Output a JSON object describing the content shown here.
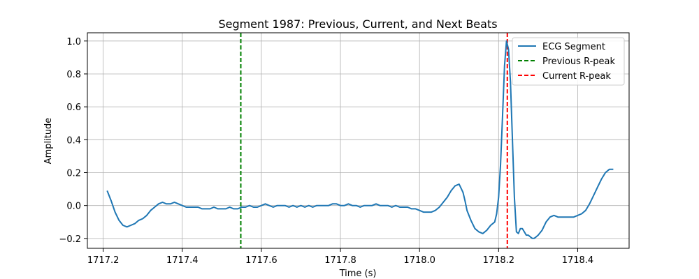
{
  "chart_data": {
    "type": "line",
    "title": "Segment 1987: Previous, Current, and Next Beats",
    "xlabel": "Time (s)",
    "ylabel": "Amplitude",
    "xlim": [
      1717.16,
      1718.53
    ],
    "ylim": [
      -0.26,
      1.05
    ],
    "xticks": [
      1717.2,
      1717.4,
      1717.6,
      1717.8,
      1718.0,
      1718.2,
      1718.4
    ],
    "xtick_labels": [
      "1717.2",
      "1717.4",
      "1717.6",
      "1717.8",
      "1718.0",
      "1718.2",
      "1718.4"
    ],
    "yticks": [
      -0.2,
      0.0,
      0.2,
      0.4,
      0.6,
      0.8,
      1.0
    ],
    "ytick_labels": [
      "−0.2",
      "0.0",
      "0.2",
      "0.4",
      "0.6",
      "0.8",
      "1.0"
    ],
    "grid": true,
    "legend_position": "top-right",
    "series": [
      {
        "name": "ECG Segment",
        "color": "#1f77b4",
        "style": "solid",
        "x": [
          1717.21,
          1717.22,
          1717.23,
          1717.24,
          1717.25,
          1717.26,
          1717.27,
          1717.28,
          1717.29,
          1717.3,
          1717.31,
          1717.32,
          1717.33,
          1717.34,
          1717.35,
          1717.36,
          1717.37,
          1717.38,
          1717.39,
          1717.4,
          1717.41,
          1717.42,
          1717.43,
          1717.44,
          1717.45,
          1717.46,
          1717.47,
          1717.48,
          1717.49,
          1717.5,
          1717.51,
          1717.52,
          1717.53,
          1717.54,
          1717.55,
          1717.56,
          1717.57,
          1717.58,
          1717.59,
          1717.6,
          1717.61,
          1717.62,
          1717.63,
          1717.64,
          1717.65,
          1717.66,
          1717.67,
          1717.68,
          1717.69,
          1717.7,
          1717.71,
          1717.72,
          1717.73,
          1717.74,
          1717.75,
          1717.76,
          1717.77,
          1717.78,
          1717.79,
          1717.8,
          1717.81,
          1717.82,
          1717.83,
          1717.84,
          1717.85,
          1717.86,
          1717.87,
          1717.88,
          1717.89,
          1717.9,
          1717.91,
          1717.92,
          1717.93,
          1717.94,
          1717.95,
          1717.96,
          1717.97,
          1717.98,
          1717.99,
          1718.0,
          1718.01,
          1718.02,
          1718.03,
          1718.04,
          1718.05,
          1718.06,
          1718.07,
          1718.08,
          1718.09,
          1718.1,
          1718.11,
          1718.115,
          1718.12,
          1718.13,
          1718.14,
          1718.15,
          1718.16,
          1718.17,
          1718.18,
          1718.19,
          1718.195,
          1718.2,
          1718.205,
          1718.21,
          1718.215,
          1718.22,
          1718.225,
          1718.23,
          1718.235,
          1718.24,
          1718.245,
          1718.25,
          1718.255,
          1718.26,
          1718.265,
          1718.27,
          1718.275,
          1718.28,
          1718.285,
          1718.29,
          1718.295,
          1718.3,
          1718.31,
          1718.32,
          1718.33,
          1718.34,
          1718.35,
          1718.36,
          1718.37,
          1718.38,
          1718.39,
          1718.4,
          1718.41,
          1718.42,
          1718.43,
          1718.44,
          1718.45,
          1718.46,
          1718.47,
          1718.48,
          1718.49
        ],
        "y": [
          0.09,
          0.03,
          -0.04,
          -0.09,
          -0.12,
          -0.13,
          -0.12,
          -0.11,
          -0.09,
          -0.08,
          -0.06,
          -0.03,
          -0.01,
          0.01,
          0.02,
          0.01,
          0.01,
          0.02,
          0.01,
          0.0,
          -0.01,
          -0.01,
          -0.01,
          -0.01,
          -0.02,
          -0.02,
          -0.02,
          -0.01,
          -0.02,
          -0.02,
          -0.02,
          -0.01,
          -0.02,
          -0.02,
          -0.01,
          -0.01,
          0.0,
          -0.01,
          -0.01,
          0.0,
          0.01,
          0.0,
          -0.01,
          0.0,
          0.0,
          0.0,
          -0.01,
          0.0,
          -0.01,
          0.0,
          -0.01,
          0.0,
          -0.01,
          0.0,
          0.0,
          0.0,
          0.0,
          0.01,
          0.01,
          0.0,
          0.0,
          0.01,
          0.0,
          0.0,
          -0.01,
          0.0,
          0.0,
          0.0,
          0.01,
          0.0,
          0.0,
          0.0,
          -0.01,
          0.0,
          -0.01,
          -0.01,
          -0.01,
          -0.02,
          -0.02,
          -0.03,
          -0.04,
          -0.04,
          -0.04,
          -0.03,
          -0.01,
          0.02,
          0.05,
          0.09,
          0.12,
          0.13,
          0.08,
          0.03,
          -0.03,
          -0.09,
          -0.14,
          -0.16,
          -0.17,
          -0.15,
          -0.12,
          -0.1,
          -0.05,
          0.05,
          0.25,
          0.55,
          0.85,
          1.0,
          0.95,
          0.75,
          0.4,
          0.05,
          -0.16,
          -0.17,
          -0.14,
          -0.14,
          -0.16,
          -0.18,
          -0.18,
          -0.19,
          -0.2,
          -0.2,
          -0.19,
          -0.18,
          -0.15,
          -0.1,
          -0.07,
          -0.06,
          -0.07,
          -0.07,
          -0.07,
          -0.07,
          -0.07,
          -0.06,
          -0.05,
          -0.03,
          0.01,
          0.06,
          0.11,
          0.16,
          0.2,
          0.22,
          0.22
        ]
      },
      {
        "name": "Previous R-peak",
        "color": "#008000",
        "style": "dashed",
        "x_position": 1717.548
      },
      {
        "name": "Current R-peak",
        "color": "#ff0000",
        "style": "dashed",
        "x_position": 1718.222
      }
    ]
  }
}
